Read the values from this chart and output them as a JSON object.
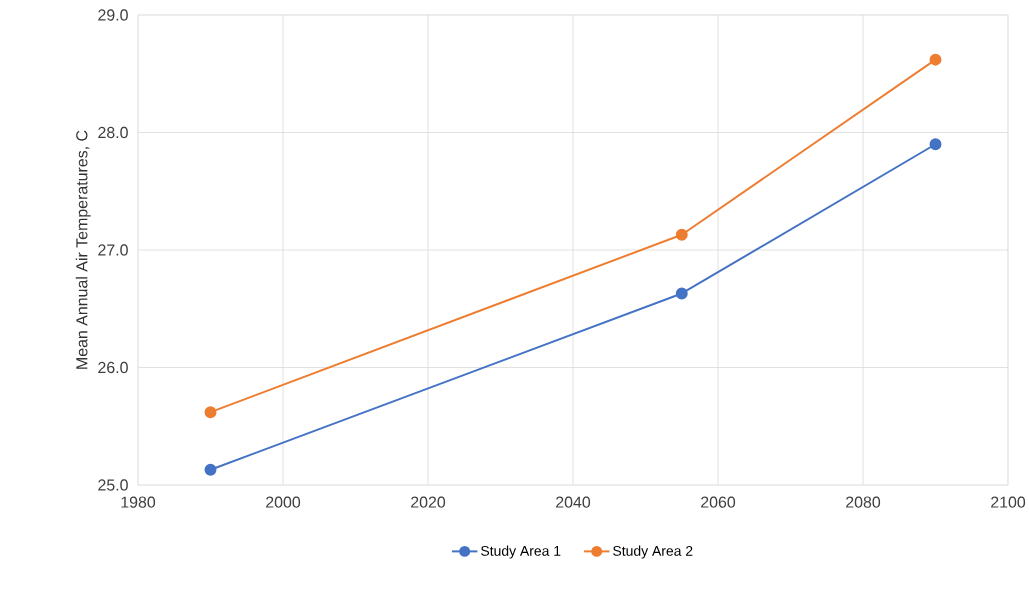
{
  "chart_data": {
    "type": "line",
    "ylabel": "Mean Annual Air Temperatures, C",
    "x": [
      1990,
      2055,
      2090
    ],
    "series": [
      {
        "name": "Study Area 1",
        "color": "#4472c4",
        "values": [
          25.13,
          26.63,
          27.9
        ]
      },
      {
        "name": "Study Area 2",
        "color": "#ed7d31",
        "values": [
          25.62,
          27.13,
          28.62
        ]
      }
    ],
    "xlim": [
      1980,
      2100
    ],
    "xticks": [
      1980,
      2000,
      2020,
      2040,
      2060,
      2080,
      2100
    ],
    "ylim": [
      25.0,
      29.0
    ],
    "yticks": [
      {
        "value": 25,
        "label": "25.0"
      },
      {
        "value": 26,
        "label": "26.0"
      },
      {
        "value": 27,
        "label": "27.0"
      },
      {
        "value": 28,
        "label": "28.0"
      },
      {
        "value": 29,
        "label": "29.0"
      }
    ],
    "grid": true,
    "legend": "bottom",
    "marker": "circle",
    "line_style": "solid"
  }
}
